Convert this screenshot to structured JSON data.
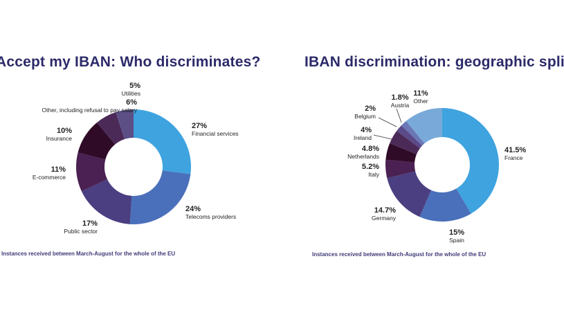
{
  "chart_data": [
    {
      "type": "pie",
      "title": "Accept my IBAN: Who discriminates?",
      "note": "Instances received between March-August for the whole of the EU",
      "donut": true,
      "categories": [
        "Financial services",
        "Telecoms providers",
        "Public sector",
        "E-commerce",
        "Insurance",
        "Other, including refusal to pay salary",
        "Utilities"
      ],
      "values": [
        27,
        24,
        17,
        11,
        10,
        6,
        5
      ],
      "labels": [
        "27%",
        "24%",
        "17%",
        "11%",
        "10%",
        "6%",
        "5%"
      ],
      "colors": [
        "#3fa3df",
        "#4a70bb",
        "#4b3f82",
        "#4a2152",
        "#2f0b27",
        "#4c2a57",
        "#5b4f86"
      ]
    },
    {
      "type": "pie",
      "title": "IBAN discrimination: geographic split",
      "note": "Instances received between March-August for the whole of the EU",
      "donut": true,
      "categories": [
        "France",
        "Spain",
        "Germany",
        "Italy",
        "Netherlands",
        "Ireland",
        "Belgium",
        "Austria",
        "Other"
      ],
      "values": [
        41.5,
        15,
        14.7,
        5.2,
        4.8,
        4,
        2,
        1.8,
        11
      ],
      "labels": [
        "41.5%",
        "15%",
        "14.7%",
        "5.2%",
        "4.8%",
        "4%",
        "2%",
        "1.8%",
        "11%"
      ],
      "colors": [
        "#3fa3df",
        "#4a70bb",
        "#4b3f82",
        "#4a2152",
        "#2f0b27",
        "#4c2a57",
        "#5b4a8a",
        "#6b77b6",
        "#79a9d8"
      ]
    }
  ]
}
